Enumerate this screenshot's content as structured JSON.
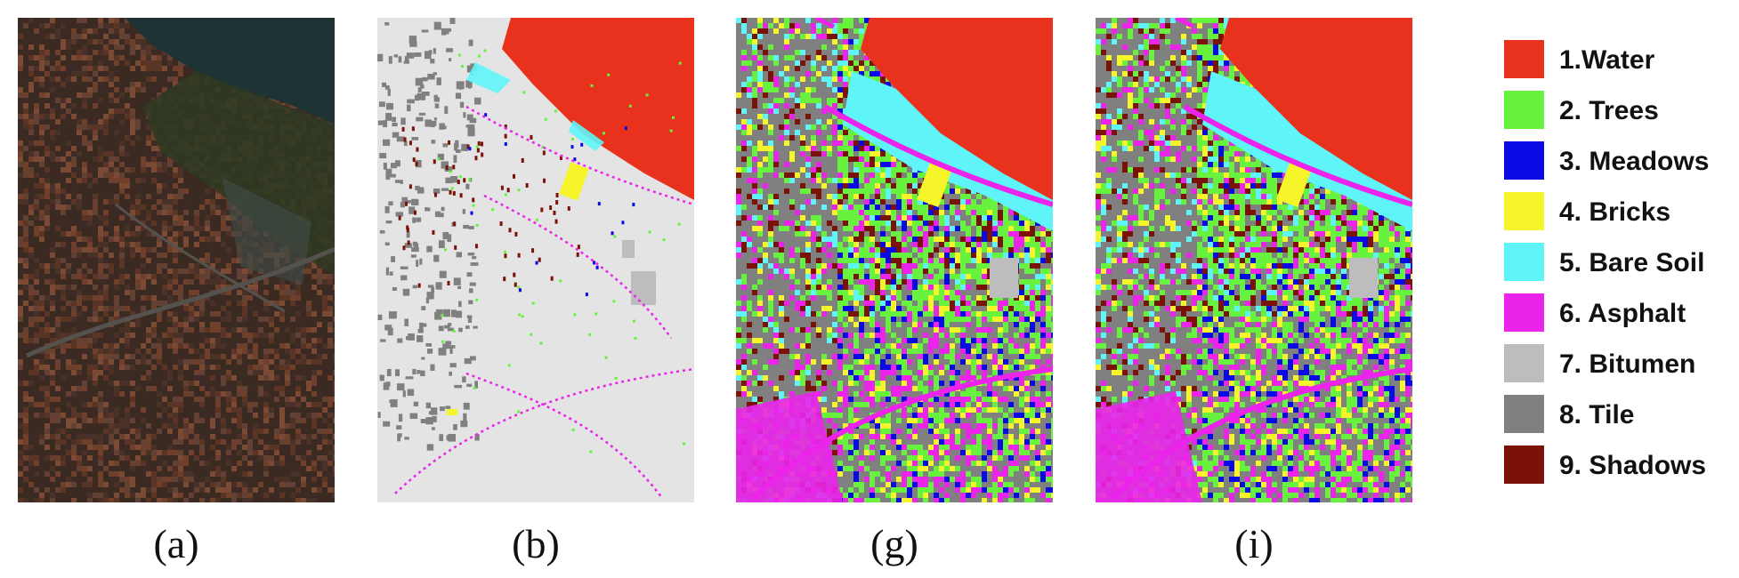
{
  "panels": [
    {
      "caption": "(a)",
      "kind": "rgb-aerial"
    },
    {
      "caption": "(b)",
      "kind": "ground-truth"
    },
    {
      "caption": "(g)",
      "kind": "classification-map"
    },
    {
      "caption": "(i)",
      "kind": "classification-map"
    }
  ],
  "legend": [
    {
      "label": "1.Water",
      "color": "#e8321e"
    },
    {
      "label": "2. Trees",
      "color": "#66f23d"
    },
    {
      "label": "3. Meadows",
      "color": "#0a0ae6"
    },
    {
      "label": "4. Bricks",
      "color": "#f5f52a"
    },
    {
      "label": "5. Bare Soil",
      "color": "#5ff5f8"
    },
    {
      "label": "6. Asphalt",
      "color": "#eb23eb"
    },
    {
      "label": "7. Bitumen",
      "color": "#bdbdbd"
    },
    {
      "label": "8. Tile",
      "color": "#808080"
    },
    {
      "label": "9. Shadows",
      "color": "#7a1208"
    }
  ],
  "colors": {
    "background_gt": "#e4e4e4",
    "aerial_base": "#3a2a22",
    "river": "#1e3434"
  }
}
